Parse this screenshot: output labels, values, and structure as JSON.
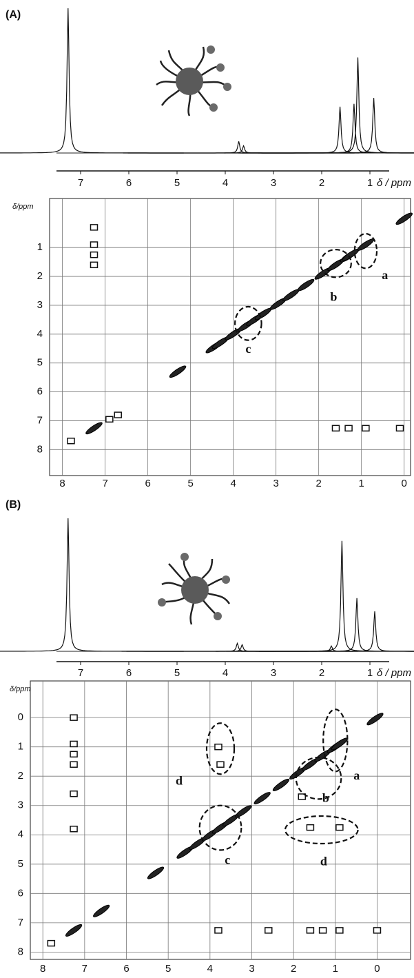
{
  "chart_data": [
    {
      "type": "spectrum",
      "panel_label": "(A)",
      "x_label": "δ / ppm",
      "xlim": [
        7.5,
        0.6
      ],
      "xticks": [
        7,
        6,
        5,
        4,
        3,
        2,
        1
      ],
      "ylim": [
        0,
        100
      ],
      "x": [
        7.26,
        3.72,
        3.62,
        1.62,
        1.33,
        1.25,
        0.92
      ],
      "values": [
        100,
        8,
        5,
        32,
        34,
        66,
        38
      ]
    },
    {
      "type": "cosy",
      "y_label": "δ/ppm",
      "xlim": [
        8.3,
        -0.15
      ],
      "ylim": [
        -0.7,
        8.9
      ],
      "xticks": [
        8,
        7,
        6,
        5,
        4,
        3,
        2,
        1,
        0
      ],
      "yticks": [
        1,
        2,
        3,
        4,
        5,
        6,
        7,
        8
      ],
      "x": [
        7.26,
        7.26,
        7.26,
        7.26,
        7.26,
        7.8,
        6.9,
        6.7,
        5.3,
        4.45,
        4.3,
        4.0,
        3.7,
        3.5,
        3.3,
        2.95,
        2.65,
        2.3,
        1.9,
        1.6,
        1.3,
        1.25,
        0.9,
        0.0,
        1.6,
        1.3,
        0.9,
        0.1
      ],
      "values": [
        0.3,
        0.9,
        1.25,
        1.6,
        7.26,
        7.7,
        6.95,
        6.8,
        5.3,
        4.45,
        4.3,
        4.0,
        3.7,
        3.5,
        3.3,
        2.95,
        2.65,
        2.3,
        1.9,
        1.6,
        1.3,
        1.25,
        0.9,
        0.0,
        7.26,
        7.26,
        7.26,
        7.26
      ],
      "ellipses": [
        {
          "x": 0.9,
          "y": 1.12,
          "rx": 0.26,
          "ry": 0.6
        },
        {
          "x": 1.6,
          "y": 1.55,
          "rx": 0.36,
          "ry": 0.48
        },
        {
          "x": 3.65,
          "y": 3.63,
          "rx": 0.31,
          "ry": 0.58
        }
      ],
      "annotations": [
        {
          "text": "a",
          "x": 0.45,
          "y": 2.0
        },
        {
          "text": "b",
          "x": 1.65,
          "y": 2.75
        },
        {
          "text": "c",
          "x": 3.65,
          "y": 4.55
        }
      ]
    },
    {
      "type": "spectrum",
      "panel_label": "(B)",
      "x_label": "δ / ppm",
      "xlim": [
        7.5,
        0.6
      ],
      "xticks": [
        7,
        6,
        5,
        4,
        3,
        2,
        1
      ],
      "ylim": [
        0,
        100
      ],
      "x": [
        7.26,
        3.75,
        3.65,
        1.8,
        1.58,
        1.27,
        0.9
      ],
      "values": [
        100,
        6,
        5,
        4,
        83,
        40,
        30
      ]
    },
    {
      "type": "cosy",
      "y_label": "δ/ppm",
      "xlim": [
        8.3,
        -0.8
      ],
      "ylim": [
        -1.25,
        8.25
      ],
      "xticks": [
        8,
        7,
        6,
        5,
        4,
        3,
        2,
        1,
        0
      ],
      "yticks": [
        0,
        1,
        2,
        3,
        4,
        5,
        6,
        7,
        8
      ],
      "x": [
        7.26,
        7.26,
        7.26,
        7.26,
        7.26,
        7.26,
        7.26,
        3.8,
        3.75,
        1.6,
        0.9,
        1.6,
        1.3,
        0.9,
        0.0,
        0.05,
        5.3,
        6.6,
        2.6,
        3.8,
        4.6,
        4.3,
        4.0,
        3.75,
        3.5,
        3.2,
        2.75,
        2.3,
        1.9,
        1.6,
        1.3,
        1.0,
        0.9,
        1.8,
        7.8
      ],
      "values": [
        0.0,
        0.9,
        1.25,
        1.6,
        2.6,
        3.8,
        7.26,
        1.0,
        1.6,
        3.75,
        3.75,
        7.26,
        7.26,
        7.26,
        7.26,
        0.05,
        5.3,
        6.6,
        7.26,
        7.26,
        4.6,
        4.3,
        4.0,
        3.75,
        3.5,
        3.2,
        2.75,
        2.3,
        1.9,
        1.6,
        1.3,
        1.0,
        0.9,
        2.7,
        7.7
      ],
      "ellipses": [
        {
          "x": 3.75,
          "y": 1.06,
          "rx": 0.33,
          "ry": 0.87
        },
        {
          "x": 1.0,
          "y": 0.78,
          "rx": 0.29,
          "ry": 1.06
        },
        {
          "x": 1.4,
          "y": 2.07,
          "rx": 0.54,
          "ry": 0.71
        },
        {
          "x": 3.75,
          "y": 3.76,
          "rx": 0.5,
          "ry": 0.76
        },
        {
          "x": 1.33,
          "y": 3.83,
          "rx": 0.87,
          "ry": 0.47
        }
      ],
      "annotations": [
        {
          "text": "d",
          "x": 4.74,
          "y": 2.19
        },
        {
          "text": "a",
          "x": 0.49,
          "y": 2.02
        },
        {
          "text": "b",
          "x": 1.23,
          "y": 2.78
        },
        {
          "text": "c",
          "x": 3.58,
          "y": 4.9
        },
        {
          "text": "d",
          "x": 1.28,
          "y": 4.94
        }
      ]
    }
  ]
}
